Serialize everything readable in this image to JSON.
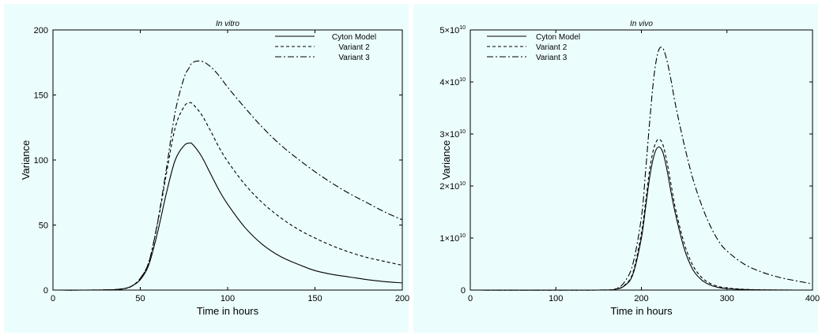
{
  "chart_data": [
    {
      "type": "line",
      "title": "In vitro",
      "xlabel": "Time in hours",
      "ylabel": "Variance",
      "xlim": [
        0,
        200
      ],
      "ylim": [
        0,
        200
      ],
      "xticks": [
        0,
        50,
        100,
        150,
        200
      ],
      "yticks": [
        0,
        50,
        100,
        150,
        200
      ],
      "ytick_labels": [
        "0",
        "50",
        "100",
        "150",
        "200"
      ],
      "xtick_labels": [
        "0",
        "50",
        "100",
        "150",
        "200"
      ],
      "legend": "top-right",
      "x": [
        0,
        30,
        40,
        45,
        50,
        55,
        60,
        65,
        70,
        75,
        78,
        80,
        85,
        90,
        95,
        100,
        110,
        120,
        130,
        140,
        150,
        160,
        170,
        180,
        190,
        200
      ],
      "series": [
        {
          "name": "Cyton Model",
          "dash": "solid",
          "values": [
            0,
            0.1,
            1,
            3,
            8,
            20,
            45,
            75,
            100,
            111,
            113,
            112,
            103,
            90,
            77,
            66,
            48,
            35,
            26,
            20,
            15,
            12,
            10,
            8,
            6.5,
            5.5
          ]
        },
        {
          "name": "Variant 2",
          "dash": "dashed",
          "values": [
            0,
            0.1,
            1,
            3,
            9,
            22,
            52,
            90,
            125,
            141,
            144,
            143,
            135,
            123,
            110,
            99,
            81,
            67,
            56,
            47,
            40,
            34,
            29,
            25,
            22,
            19
          ]
        },
        {
          "name": "Variant 3",
          "dash": "dashdot",
          "values": [
            0,
            0.1,
            1,
            3,
            9,
            22,
            53,
            94,
            137,
            163,
            171,
            175,
            176,
            172,
            165,
            156,
            140,
            125,
            112,
            101,
            91,
            82,
            74,
            67,
            60,
            54
          ]
        }
      ]
    },
    {
      "type": "line",
      "title": "In vivo",
      "xlabel": "Time in hours",
      "ylabel": "Variance",
      "xlim": [
        0,
        400
      ],
      "ylim": [
        0,
        50000000000
      ],
      "xticks": [
        0,
        100,
        200,
        300,
        400
      ],
      "xtick_labels": [
        "0",
        "100",
        "200",
        "300",
        "400"
      ],
      "yticks": [
        0,
        10000000000,
        20000000000,
        30000000000,
        40000000000,
        50000000000
      ],
      "ytick_labels": [
        {
          "base": "0",
          "exp": ""
        },
        {
          "base": "1×10",
          "exp": "10"
        },
        {
          "base": "2×10",
          "exp": "10"
        },
        {
          "base": "3×10",
          "exp": "10"
        },
        {
          "base": "4×10",
          "exp": "10"
        },
        {
          "base": "5×10",
          "exp": "10"
        }
      ],
      "legend": "top-left",
      "x": [
        0,
        150,
        170,
        180,
        190,
        200,
        205,
        210,
        215,
        220,
        225,
        230,
        235,
        240,
        250,
        260,
        270,
        280,
        290,
        300,
        320,
        340,
        360,
        380,
        400
      ],
      "series": [
        {
          "name": "Cyton Model",
          "dash": "solid",
          "values": [
            0,
            0,
            200000000,
            800000000,
            3000000000,
            10000000000,
            16000000000,
            22000000000,
            26000000000,
            27500000000,
            26500000000,
            23000000000,
            18500000000,
            14500000000,
            8000000000,
            4000000000,
            2000000000,
            1000000000,
            500000000,
            300000000,
            100000000,
            30000000,
            10000000,
            0,
            0
          ]
        },
        {
          "name": "Variant 2",
          "dash": "dashed",
          "values": [
            0,
            0,
            200000000,
            900000000,
            3300000000,
            11000000000,
            17000000000,
            23500000000,
            27500000000,
            29000000000,
            28000000000,
            24500000000,
            20000000000,
            15500000000,
            9000000000,
            4800000000,
            2500000000,
            1300000000,
            700000000,
            400000000,
            150000000,
            50000000,
            20000000,
            0,
            0
          ]
        },
        {
          "name": "Variant 3",
          "dash": "dashdot",
          "values": [
            0,
            0,
            300000000,
            1500000000,
            5000000000,
            14000000000,
            23000000000,
            33000000000,
            41500000000,
            46000000000,
            46500000000,
            44000000000,
            40000000000,
            35500000000,
            28000000000,
            21500000000,
            16500000000,
            12500000000,
            9500000000,
            7500000000,
            5000000000,
            3500000000,
            2500000000,
            1800000000,
            1200000000
          ]
        }
      ]
    }
  ]
}
